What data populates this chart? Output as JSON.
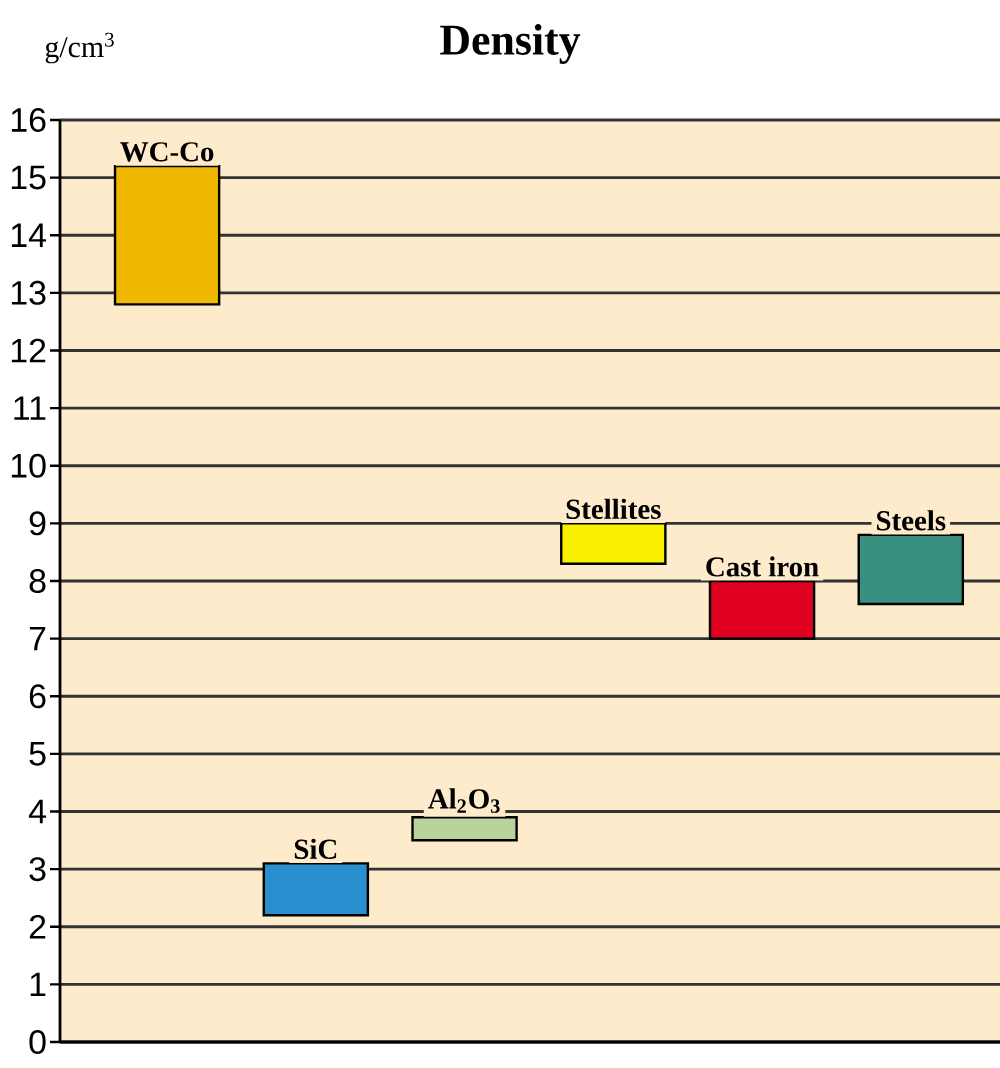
{
  "chart_data": {
    "type": "bar",
    "title": "Density",
    "ylabel": "g/cm$^{3}$",
    "categories": [
      "WC-Co",
      "SiC",
      "Al$_{2}$O$_{3}$",
      "Stellites",
      "Cast iron",
      "Steels"
    ],
    "base": [
      12.8,
      2.2,
      3.5,
      8.3,
      7.0,
      7.6
    ],
    "values": [
      2.4,
      0.9,
      0.4,
      0.7,
      1.0,
      1.2
    ],
    "colors": [
      "#f0b800",
      "#2a8fcf",
      "#b9d39a",
      "#f8f000",
      "#e00020",
      "#3a9080"
    ],
    "ylim": [
      0,
      16
    ],
    "yticks": [
      0,
      1,
      2,
      3,
      4,
      5,
      6,
      7,
      8,
      9,
      10,
      11,
      12,
      13,
      14,
      15,
      16
    ],
    "grid": "y",
    "tick_labels": "y"
  }
}
